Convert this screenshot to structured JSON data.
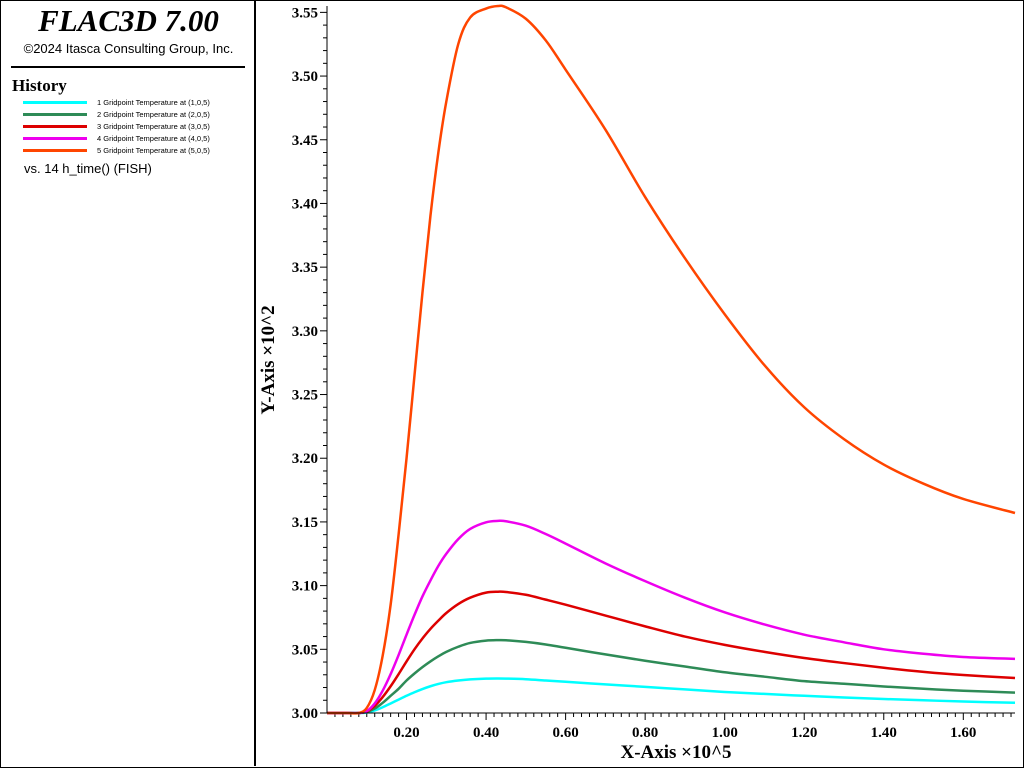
{
  "app": {
    "title": "FLAC3D 7.00",
    "copyright": "©2024 Itasca Consulting Group, Inc."
  },
  "legend": {
    "heading": "History",
    "items": [
      {
        "label": "1 Gridpoint Temperature at (1,0,5)",
        "color": "#00ffff"
      },
      {
        "label": "2 Gridpoint Temperature at (2,0,5)",
        "color": "#2e8b57"
      },
      {
        "label": "3 Gridpoint Temperature at (3,0,5)",
        "color": "#dd0000"
      },
      {
        "label": "4 Gridpoint Temperature at (4,0,5)",
        "color": "#ee00ee"
      },
      {
        "label": "5 Gridpoint Temperature at (5,0,5)",
        "color": "#ff4500"
      }
    ],
    "vs_label": "vs. 14 h_time() (FISH)"
  },
  "chart_data": {
    "type": "line",
    "title": "",
    "xlabel": "X-Axis ×10^5",
    "ylabel": "Y-Axis ×10^2",
    "xlim": [
      0.0,
      1.73
    ],
    "ylim": [
      3.0,
      3.555
    ],
    "x_ticks": [
      0.2,
      0.4,
      0.6,
      0.8,
      1.0,
      1.2,
      1.4,
      1.6
    ],
    "x_tick_labels": [
      "0.20",
      "0.40",
      "0.60",
      "0.80",
      "1.00",
      "1.20",
      "1.40",
      "1.60"
    ],
    "y_ticks": [
      3.0,
      3.05,
      3.1,
      3.15,
      3.2,
      3.25,
      3.3,
      3.35,
      3.4,
      3.45,
      3.5,
      3.55
    ],
    "y_tick_labels": [
      "3.00",
      "3.05",
      "3.10",
      "3.15",
      "3.20",
      "3.25",
      "3.30",
      "3.35",
      "3.40",
      "3.45",
      "3.50",
      "3.55"
    ],
    "grid": false,
    "legend_position": "left-panel",
    "x": [
      0.0,
      0.05,
      0.08,
      0.1,
      0.12,
      0.14,
      0.16,
      0.18,
      0.2,
      0.22,
      0.24,
      0.26,
      0.28,
      0.3,
      0.33,
      0.36,
      0.4,
      0.43,
      0.45,
      0.5,
      0.55,
      0.6,
      0.7,
      0.8,
      0.9,
      1.0,
      1.1,
      1.2,
      1.3,
      1.4,
      1.5,
      1.6,
      1.73
    ],
    "series": [
      {
        "name": "1 Gridpoint Temperature at (1,0,5)",
        "color": "#00ffff",
        "values": [
          3.0,
          3.0,
          3.0,
          3.0004,
          3.002,
          3.0045,
          3.0075,
          3.0105,
          3.0135,
          3.0163,
          3.0188,
          3.021,
          3.0228,
          3.0242,
          3.0255,
          3.0264,
          3.027,
          3.0271,
          3.027,
          3.0265,
          3.0255,
          3.0245,
          3.0225,
          3.0205,
          3.0185,
          3.0165,
          3.015,
          3.0135,
          3.0122,
          3.011,
          3.01,
          3.009,
          3.008
        ]
      },
      {
        "name": "2 Gridpoint Temperature at (2,0,5)",
        "color": "#2e8b57",
        "values": [
          3.0,
          3.0,
          3.0,
          3.0008,
          3.0035,
          3.008,
          3.0135,
          3.019,
          3.0255,
          3.031,
          3.036,
          3.0405,
          3.0445,
          3.048,
          3.052,
          3.055,
          3.0568,
          3.0572,
          3.0571,
          3.0558,
          3.0538,
          3.0512,
          3.046,
          3.041,
          3.0365,
          3.032,
          3.0285,
          3.025,
          3.023,
          3.0208,
          3.019,
          3.0175,
          3.016
        ]
      },
      {
        "name": "3 Gridpoint Temperature at (3,0,5)",
        "color": "#dd0000",
        "values": [
          3.0,
          3.0,
          3.0,
          3.0012,
          3.0055,
          3.0125,
          3.021,
          3.0305,
          3.0405,
          3.05,
          3.0585,
          3.066,
          3.0725,
          3.0785,
          3.0855,
          3.0905,
          3.0945,
          3.0952,
          3.095,
          3.0928,
          3.089,
          3.085,
          3.0765,
          3.068,
          3.06,
          3.0535,
          3.048,
          3.0432,
          3.0392,
          3.0355,
          3.0323,
          3.0298,
          3.0275
        ]
      },
      {
        "name": "4 Gridpoint Temperature at (4,0,5)",
        "color": "#ee00ee",
        "values": [
          3.0,
          3.0,
          3.0,
          3.0015,
          3.0075,
          3.0175,
          3.0305,
          3.0455,
          3.0615,
          3.077,
          3.0915,
          3.104,
          3.1155,
          3.125,
          3.1365,
          3.1445,
          3.1497,
          3.1508,
          3.1505,
          3.147,
          3.1405,
          3.133,
          3.1175,
          3.1035,
          3.0905,
          3.079,
          3.0695,
          3.0615,
          3.0555,
          3.05,
          3.0465,
          3.044,
          3.0425
        ]
      },
      {
        "name": "5 Gridpoint Temperature at (5,0,5)",
        "color": "#ff4500",
        "values": [
          3.0,
          3.0,
          3.0,
          3.004,
          3.018,
          3.045,
          3.085,
          3.14,
          3.2,
          3.265,
          3.33,
          3.39,
          3.44,
          3.48,
          3.525,
          3.546,
          3.553,
          3.555,
          3.554,
          3.545,
          3.528,
          3.505,
          3.458,
          3.405,
          3.357,
          3.313,
          3.273,
          3.24,
          3.215,
          3.195,
          3.18,
          3.168,
          3.157
        ]
      }
    ]
  }
}
